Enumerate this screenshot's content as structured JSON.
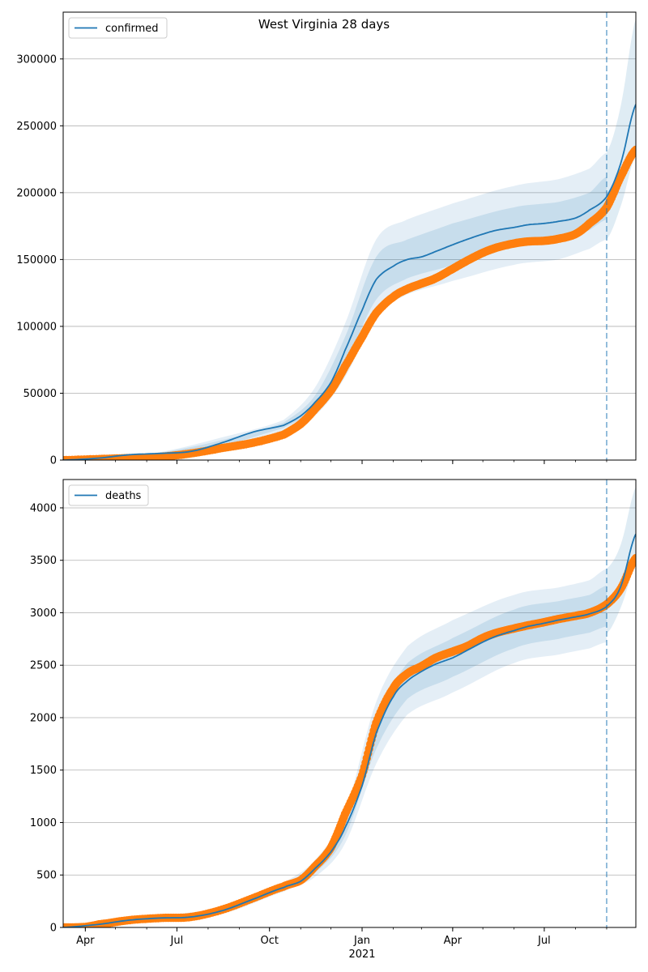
{
  "figure": {
    "title": "West Virginia 28 days"
  },
  "colors": {
    "model": "#1f77b4",
    "observed": "#ff7f0e",
    "band": "#1f77b4",
    "grid": "#b0b0b0",
    "forecast_line": "#1f77b4"
  },
  "x_axis": {
    "ticks": [
      {
        "date": "2020-04-01",
        "label": "Apr"
      },
      {
        "date": "2020-07-01",
        "label": "Jul"
      },
      {
        "date": "2020-10-01",
        "label": "Oct"
      },
      {
        "date": "2021-01-01",
        "label": "Jan",
        "sublabel": "2021"
      },
      {
        "date": "2021-04-01",
        "label": "Apr"
      },
      {
        "date": "2021-07-01",
        "label": "Jul"
      }
    ],
    "xlim": [
      "2020-03-10",
      "2021-09-30"
    ],
    "forecast_start": "2021-09-01"
  },
  "chart_data": [
    {
      "type": "line",
      "legend": "confirmed",
      "legend_position": "top-left",
      "ylim": [
        0,
        335000
      ],
      "yticks": [
        0,
        50000,
        100000,
        150000,
        200000,
        250000,
        300000
      ],
      "grid": true,
      "model": {
        "name": "confirmed",
        "points": [
          [
            "2020-03-10",
            0
          ],
          [
            "2020-04-15",
            1500
          ],
          [
            "2020-05-15",
            4000
          ],
          [
            "2020-06-15",
            5000
          ],
          [
            "2020-07-15",
            6500
          ],
          [
            "2020-08-15",
            13000
          ],
          [
            "2020-09-15",
            21000
          ],
          [
            "2020-10-15",
            26000
          ],
          [
            "2020-11-01",
            33000
          ],
          [
            "2020-11-15",
            43000
          ],
          [
            "2020-12-01",
            58000
          ],
          [
            "2020-12-15",
            82000
          ],
          [
            "2021-01-01",
            112000
          ],
          [
            "2021-01-15",
            135000
          ],
          [
            "2021-02-01",
            145000
          ],
          [
            "2021-02-15",
            150000
          ],
          [
            "2021-03-01",
            152000
          ],
          [
            "2021-03-15",
            156000
          ],
          [
            "2021-04-01",
            161000
          ],
          [
            "2021-04-15",
            165000
          ],
          [
            "2021-05-01",
            169000
          ],
          [
            "2021-05-15",
            172000
          ],
          [
            "2021-06-01",
            174000
          ],
          [
            "2021-06-15",
            176000
          ],
          [
            "2021-07-01",
            177000
          ],
          [
            "2021-07-15",
            178500
          ],
          [
            "2021-08-01",
            181000
          ],
          [
            "2021-08-15",
            187000
          ],
          [
            "2021-09-01",
            197000
          ],
          [
            "2021-09-15",
            222000
          ],
          [
            "2021-09-30",
            266000
          ]
        ]
      },
      "bands": {
        "inner_upper": [
          [
            "2020-03-10",
            0
          ],
          [
            "2020-06-15",
            5500
          ],
          [
            "2020-08-15",
            15000
          ],
          [
            "2020-10-15",
            28000
          ],
          [
            "2020-11-15",
            48000
          ],
          [
            "2020-12-15",
            92000
          ],
          [
            "2021-01-15",
            152000
          ],
          [
            "2021-02-15",
            165000
          ],
          [
            "2021-04-01",
            177000
          ],
          [
            "2021-06-01",
            189000
          ],
          [
            "2021-07-15",
            193000
          ],
          [
            "2021-08-15",
            200000
          ],
          [
            "2021-09-01",
            212000
          ]
        ],
        "inner_lower": [
          [
            "2020-03-10",
            0
          ],
          [
            "2020-06-15",
            4500
          ],
          [
            "2020-08-15",
            11000
          ],
          [
            "2020-10-15",
            24000
          ],
          [
            "2020-11-15",
            38000
          ],
          [
            "2020-12-15",
            72000
          ],
          [
            "2021-01-15",
            120000
          ],
          [
            "2021-02-15",
            136000
          ],
          [
            "2021-04-01",
            146000
          ],
          [
            "2021-06-01",
            160000
          ],
          [
            "2021-07-15",
            164000
          ],
          [
            "2021-08-15",
            172000
          ],
          [
            "2021-09-01",
            180000
          ]
        ],
        "outer_upper": [
          [
            "2020-03-10",
            0
          ],
          [
            "2020-06-15",
            6000
          ],
          [
            "2020-08-15",
            17000
          ],
          [
            "2020-10-15",
            30000
          ],
          [
            "2020-11-15",
            54000
          ],
          [
            "2020-12-15",
            102000
          ],
          [
            "2021-01-15",
            165000
          ],
          [
            "2021-02-15",
            180000
          ],
          [
            "2021-04-01",
            192000
          ],
          [
            "2021-06-01",
            205000
          ],
          [
            "2021-07-15",
            210000
          ],
          [
            "2021-08-15",
            218000
          ],
          [
            "2021-09-01",
            230000
          ]
        ],
        "outer_lower": [
          [
            "2020-03-10",
            0
          ],
          [
            "2020-06-15",
            4000
          ],
          [
            "2020-08-15",
            9500
          ],
          [
            "2020-10-15",
            22000
          ],
          [
            "2020-11-15",
            33000
          ],
          [
            "2020-12-15",
            62000
          ],
          [
            "2021-01-15",
            108000
          ],
          [
            "2021-02-15",
            124000
          ],
          [
            "2021-04-01",
            134000
          ],
          [
            "2021-06-01",
            146000
          ],
          [
            "2021-07-15",
            150000
          ],
          [
            "2021-08-15",
            158000
          ],
          [
            "2021-09-01",
            165000
          ]
        ],
        "forecast_upper": [
          [
            "2021-09-01",
            230000
          ],
          [
            "2021-09-15",
            265000
          ],
          [
            "2021-09-30",
            330000
          ]
        ],
        "forecast_lower": [
          [
            "2021-09-01",
            165000
          ],
          [
            "2021-09-15",
            190000
          ],
          [
            "2021-09-30",
            228000
          ]
        ]
      },
      "observed": {
        "points": [
          [
            "2020-03-10",
            0
          ],
          [
            "2020-04-15",
            800
          ],
          [
            "2020-05-15",
            1500
          ],
          [
            "2020-06-15",
            2500
          ],
          [
            "2020-07-15",
            5000
          ],
          [
            "2020-08-15",
            9000
          ],
          [
            "2020-09-15",
            13000
          ],
          [
            "2020-10-15",
            19000
          ],
          [
            "2020-11-01",
            27000
          ],
          [
            "2020-11-15",
            38000
          ],
          [
            "2020-12-01",
            52000
          ],
          [
            "2020-12-15",
            70000
          ],
          [
            "2021-01-01",
            92000
          ],
          [
            "2021-01-15",
            110000
          ],
          [
            "2021-02-01",
            122000
          ],
          [
            "2021-02-15",
            128000
          ],
          [
            "2021-03-01",
            132000
          ],
          [
            "2021-03-15",
            136000
          ],
          [
            "2021-04-01",
            143000
          ],
          [
            "2021-04-15",
            149000
          ],
          [
            "2021-05-01",
            155000
          ],
          [
            "2021-05-15",
            159000
          ],
          [
            "2021-06-01",
            162000
          ],
          [
            "2021-06-15",
            163500
          ],
          [
            "2021-07-01",
            164000
          ],
          [
            "2021-07-15",
            165500
          ],
          [
            "2021-08-01",
            169000
          ],
          [
            "2021-08-15",
            177000
          ],
          [
            "2021-09-01",
            189000
          ],
          [
            "2021-09-15",
            212000
          ],
          [
            "2021-09-30",
            232000
          ]
        ]
      }
    },
    {
      "type": "line",
      "legend": "deaths",
      "legend_position": "top-left",
      "ylim": [
        0,
        4270
      ],
      "yticks": [
        0,
        500,
        1000,
        1500,
        2000,
        2500,
        3000,
        3500,
        4000
      ],
      "grid": true,
      "model": {
        "name": "deaths",
        "points": [
          [
            "2020-03-10",
            0
          ],
          [
            "2020-04-15",
            30
          ],
          [
            "2020-05-15",
            70
          ],
          [
            "2020-06-15",
            90
          ],
          [
            "2020-07-15",
            100
          ],
          [
            "2020-08-15",
            160
          ],
          [
            "2020-09-15",
            270
          ],
          [
            "2020-10-15",
            380
          ],
          [
            "2020-11-01",
            440
          ],
          [
            "2020-11-15",
            560
          ],
          [
            "2020-12-01",
            720
          ],
          [
            "2020-12-15",
            950
          ],
          [
            "2021-01-01",
            1350
          ],
          [
            "2021-01-15",
            1850
          ],
          [
            "2021-02-01",
            2200
          ],
          [
            "2021-02-15",
            2350
          ],
          [
            "2021-03-01",
            2440
          ],
          [
            "2021-03-15",
            2510
          ],
          [
            "2021-04-01",
            2570
          ],
          [
            "2021-04-15",
            2640
          ],
          [
            "2021-05-01",
            2720
          ],
          [
            "2021-05-15",
            2780
          ],
          [
            "2021-06-01",
            2830
          ],
          [
            "2021-06-15",
            2870
          ],
          [
            "2021-07-01",
            2900
          ],
          [
            "2021-07-15",
            2930
          ],
          [
            "2021-08-01",
            2960
          ],
          [
            "2021-08-15",
            2990
          ],
          [
            "2021-09-01",
            3060
          ],
          [
            "2021-09-15",
            3250
          ],
          [
            "2021-09-30",
            3750
          ]
        ]
      },
      "bands": {
        "inner_upper": [
          [
            "2020-03-10",
            0
          ],
          [
            "2020-06-15",
            100
          ],
          [
            "2020-08-15",
            175
          ],
          [
            "2020-10-15",
            400
          ],
          [
            "2020-11-15",
            600
          ],
          [
            "2020-12-15",
            1030
          ],
          [
            "2021-01-15",
            2000
          ],
          [
            "2021-02-15",
            2520
          ],
          [
            "2021-04-01",
            2760
          ],
          [
            "2021-06-01",
            3030
          ],
          [
            "2021-07-15",
            3110
          ],
          [
            "2021-08-15",
            3170
          ],
          [
            "2021-09-01",
            3260
          ]
        ],
        "inner_lower": [
          [
            "2020-03-10",
            0
          ],
          [
            "2020-06-15",
            80
          ],
          [
            "2020-08-15",
            145
          ],
          [
            "2020-10-15",
            360
          ],
          [
            "2020-11-15",
            520
          ],
          [
            "2020-12-15",
            870
          ],
          [
            "2021-01-15",
            1700
          ],
          [
            "2021-02-15",
            2180
          ],
          [
            "2021-04-01",
            2390
          ],
          [
            "2021-06-01",
            2660
          ],
          [
            "2021-07-15",
            2750
          ],
          [
            "2021-08-15",
            2810
          ],
          [
            "2021-09-01",
            2870
          ]
        ],
        "outer_upper": [
          [
            "2020-03-10",
            0
          ],
          [
            "2020-06-15",
            110
          ],
          [
            "2020-08-15",
            190
          ],
          [
            "2020-10-15",
            420
          ],
          [
            "2020-11-15",
            640
          ],
          [
            "2020-12-15",
            1100
          ],
          [
            "2021-01-15",
            2150
          ],
          [
            "2021-02-15",
            2680
          ],
          [
            "2021-04-01",
            2930
          ],
          [
            "2021-06-01",
            3170
          ],
          [
            "2021-07-15",
            3240
          ],
          [
            "2021-08-15",
            3310
          ],
          [
            "2021-09-01",
            3420
          ]
        ],
        "outer_lower": [
          [
            "2020-03-10",
            0
          ],
          [
            "2020-06-15",
            70
          ],
          [
            "2020-08-15",
            130
          ],
          [
            "2020-10-15",
            340
          ],
          [
            "2020-11-15",
            480
          ],
          [
            "2020-12-15",
            800
          ],
          [
            "2021-01-15",
            1560
          ],
          [
            "2021-02-15",
            2030
          ],
          [
            "2021-04-01",
            2240
          ],
          [
            "2021-06-01",
            2520
          ],
          [
            "2021-07-15",
            2600
          ],
          [
            "2021-08-15",
            2660
          ],
          [
            "2021-09-01",
            2720
          ]
        ],
        "forecast_upper": [
          [
            "2021-09-01",
            3420
          ],
          [
            "2021-09-15",
            3650
          ],
          [
            "2021-09-30",
            4200
          ]
        ],
        "forecast_lower": [
          [
            "2021-09-01",
            2800
          ],
          [
            "2021-09-15",
            3050
          ],
          [
            "2021-09-30",
            3450
          ]
        ]
      },
      "observed": {
        "points": [
          [
            "2020-03-10",
            0
          ],
          [
            "2020-04-01",
            5
          ],
          [
            "2020-04-15",
            30
          ],
          [
            "2020-05-15",
            70
          ],
          [
            "2020-06-15",
            90
          ],
          [
            "2020-07-15",
            100
          ],
          [
            "2020-08-15",
            170
          ],
          [
            "2020-09-15",
            280
          ],
          [
            "2020-10-15",
            390
          ],
          [
            "2020-11-01",
            450
          ],
          [
            "2020-11-15",
            580
          ],
          [
            "2020-12-01",
            760
          ],
          [
            "2020-12-15",
            1080
          ],
          [
            "2021-01-01",
            1450
          ],
          [
            "2021-01-15",
            1950
          ],
          [
            "2021-02-01",
            2280
          ],
          [
            "2021-02-15",
            2420
          ],
          [
            "2021-03-01",
            2490
          ],
          [
            "2021-03-15",
            2570
          ],
          [
            "2021-04-01",
            2630
          ],
          [
            "2021-04-15",
            2680
          ],
          [
            "2021-05-01",
            2760
          ],
          [
            "2021-05-15",
            2810
          ],
          [
            "2021-06-01",
            2850
          ],
          [
            "2021-06-15",
            2880
          ],
          [
            "2021-07-01",
            2910
          ],
          [
            "2021-07-15",
            2940
          ],
          [
            "2021-08-01",
            2970
          ],
          [
            "2021-08-15",
            3000
          ],
          [
            "2021-09-01",
            3080
          ],
          [
            "2021-09-15",
            3230
          ],
          [
            "2021-09-30",
            3520
          ]
        ]
      }
    }
  ]
}
